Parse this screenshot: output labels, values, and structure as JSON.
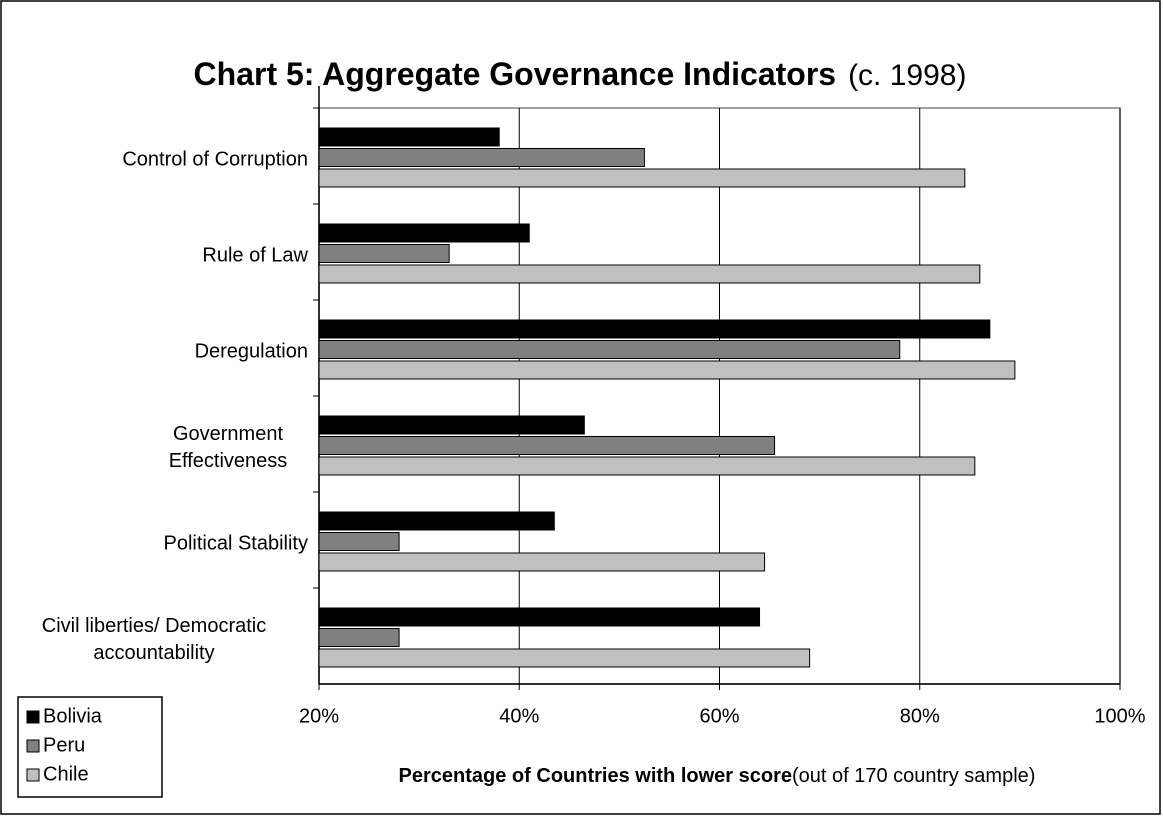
{
  "chart_data": {
    "type": "hbar",
    "title": "Chart 5: Aggregate Governance Indicators",
    "subtitle": "(c. 1998)",
    "x_label": "Percentage of Countries with lower score",
    "x_label_note": "(out of 170 country sample)",
    "categories": [
      "Control of Corruption",
      "Rule of Law",
      "Deregulation",
      "Government Effectiveness",
      "Political Stability",
      "Civil liberties/ Democratic accountability"
    ],
    "series": [
      {
        "name": "Bolivia",
        "color": "#000000",
        "values": [
          38,
          41,
          87,
          46.5,
          43.5,
          64
        ]
      },
      {
        "name": "Peru",
        "color": "#808080",
        "values": [
          52.5,
          33,
          78,
          65.5,
          28,
          28
        ]
      },
      {
        "name": "Chile",
        "color": "#c0c0c0",
        "values": [
          84.5,
          86,
          89.5,
          85.5,
          64.5,
          69
        ]
      }
    ],
    "xlim": [
      20,
      100
    ],
    "xticks": [
      {
        "value": 20,
        "label": "20%"
      },
      {
        "value": 40,
        "label": "40%"
      },
      {
        "value": 60,
        "label": "60%"
      },
      {
        "value": 80,
        "label": "80%"
      },
      {
        "value": 100,
        "label": "100%"
      }
    ],
    "grid": true,
    "legend": "bottom-left"
  }
}
